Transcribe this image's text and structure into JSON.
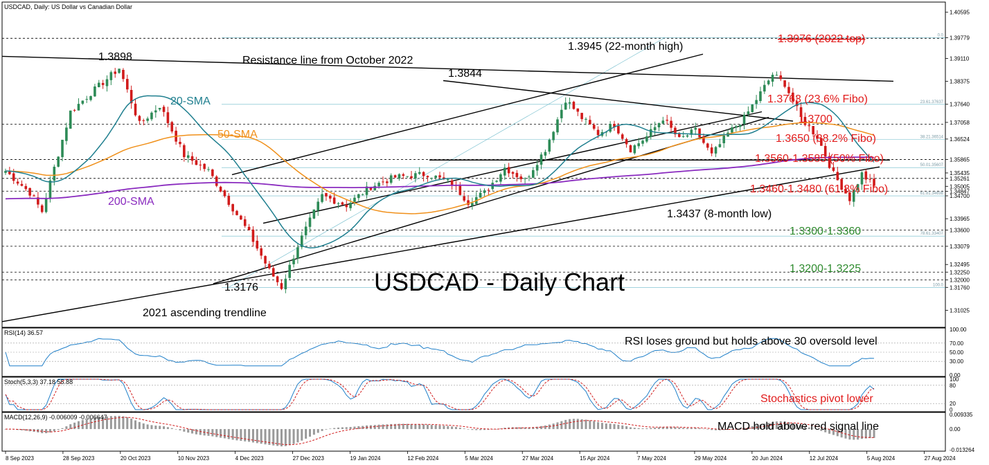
{
  "header": {
    "main_title": "USDCAD, Daily:  US Dollar vs Canadian Dollar",
    "rsi_title": "RSI(14) 36.57",
    "stoch_title": "Stoch(5,3,3) 37.18 55.88",
    "macd_title": "MACD(12,26,9) -0.006009 -0.006647"
  },
  "colors": {
    "bull": "#2e8b57",
    "bear": "#d11b1b",
    "sma20": "#1f7f8f",
    "sma50": "#f0901a",
    "sma200": "#8a2bbf",
    "indicator": "#1e7fc9",
    "signal": "#d11b1b",
    "label_red": "#e11b1b",
    "label_green": "#2e8b2e",
    "label_teal": "#1f7f8f"
  },
  "annotations": {
    "big_title": "USDCAD - Daily Chart",
    "high_1": "1.3898",
    "high_2": "1.3844",
    "high_3": "1.3945 (22-month high)",
    "resistance": "Resistance line from October 2022",
    "low_1": "1.3176",
    "trendline_2021": "2021 ascending trendline",
    "low_2": "1.3437 (8-month low)",
    "sma20": "20-SMA",
    "sma50": "50-SMA",
    "sma200": "200-SMA",
    "lvl_2022_top": "1.3976 (2022 top)",
    "lvl_fibo_236": "1.3763 (23.6% Fibo)",
    "lvl_1_37": "1.3700",
    "lvl_fibo_382": "1.3650 (38.2% Fibo)",
    "lvl_fibo_50": "1.3560-1.3585 (50% Fibo)",
    "lvl_fibo_618": "1.3460-1.3480 (61.8% Fibo)",
    "lvl_support_1": "1.3300-1.3360",
    "lvl_support_2": "1.3200-1.3225",
    "rsi_note": "RSI loses ground but holds above 30 oversold level",
    "stoch_note": "Stochastics pivot lower",
    "macd_note": "MACD hold above red signal line"
  },
  "fibo_labels": [
    "0.0",
    "23.61.37637",
    "38.21.36514",
    "50.01.35607",
    "61.81.34698",
    "78.61.33407",
    "100.0"
  ],
  "price_axis": [
    "1.40595",
    "1.39779",
    "1.39110",
    "1.38375",
    "1.37640",
    "1.37058",
    "1.36524",
    "1.35865",
    "1.35435",
    "1.35261",
    "1.35005",
    "1.34847",
    "1.34700",
    "1.33965",
    "1.33600",
    "1.33079",
    "1.32495",
    "1.32250",
    "1.32000",
    "1.31760",
    "1.31025"
  ],
  "rsi_axis": [
    "100.00",
    "70.00",
    "50.00",
    "30.00",
    "0.00"
  ],
  "stoch_axis": [
    "100",
    "80",
    "20",
    "0"
  ],
  "macd_axis": [
    "0.009335",
    "0.00",
    "-0.013264"
  ],
  "date_axis": [
    "8 Sep 2023",
    "28 Sep 2023",
    "20 Oct 2023",
    "10 Nov 2023",
    "4 Dec 2023",
    "27 Dec 2023",
    "19 Jan 2024",
    "12 Feb 2024",
    "5 Mar 2024",
    "27 Mar 2024",
    "15 Apr 2024",
    "7 May 2024",
    "29 May 2024",
    "20 Jun 2024",
    "12 Jul 2024",
    "5 Aug 2024",
    "27 Aug 2024"
  ],
  "chart_data": [
    {
      "type": "candlestick",
      "title": "USDCAD, Daily:  US Dollar vs Canadian Dollar",
      "ylim": [
        1.305,
        1.409
      ],
      "anchors": [
        [
          0,
          1.355
        ],
        [
          6,
          1.348
        ],
        [
          9,
          1.342
        ],
        [
          12,
          1.356
        ],
        [
          16,
          1.374
        ],
        [
          21,
          1.38
        ],
        [
          28,
          1.388
        ],
        [
          33,
          1.37
        ],
        [
          38,
          1.376
        ],
        [
          44,
          1.36
        ],
        [
          50,
          1.355
        ],
        [
          55,
          1.345
        ],
        [
          60,
          1.335
        ],
        [
          65,
          1.323
        ],
        [
          68,
          1.3176
        ],
        [
          72,
          1.331
        ],
        [
          78,
          1.347
        ],
        [
          84,
          1.344
        ],
        [
          90,
          1.35
        ],
        [
          96,
          1.353
        ],
        [
          104,
          1.354
        ],
        [
          110,
          1.351
        ],
        [
          114,
          1.345
        ],
        [
          118,
          1.348
        ],
        [
          123,
          1.356
        ],
        [
          128,
          1.352
        ],
        [
          133,
          1.362
        ],
        [
          138,
          1.378
        ],
        [
          142,
          1.372
        ],
        [
          146,
          1.367
        ],
        [
          150,
          1.37
        ],
        [
          154,
          1.362
        ],
        [
          158,
          1.366
        ],
        [
          162,
          1.372
        ],
        [
          166,
          1.365
        ],
        [
          170,
          1.368
        ],
        [
          174,
          1.36
        ],
        [
          178,
          1.367
        ],
        [
          182,
          1.372
        ],
        [
          186,
          1.38
        ],
        [
          189,
          1.386
        ],
        [
          192,
          1.383
        ],
        [
          196,
          1.372
        ],
        [
          200,
          1.366
        ],
        [
          204,
          1.354
        ],
        [
          208,
          1.346
        ],
        [
          211,
          1.354
        ],
        [
          214,
          1.35
        ]
      ],
      "sma200_start": 1.346,
      "x_dates_first": "8 Sep 2023",
      "x_dates_last": "27 Aug 2024"
    },
    {
      "type": "line",
      "title": "RSI(14) 36.57",
      "ylim": [
        0,
        100
      ],
      "levels": [
        70,
        50,
        30
      ]
    },
    {
      "type": "line",
      "title": "Stoch(5,3,3) 37.18 55.88",
      "ylim": [
        0,
        100
      ],
      "levels": [
        80,
        20
      ]
    },
    {
      "type": "line",
      "title": "MACD(12,26,9) -0.006009 -0.006647",
      "ylim": [
        -0.013264,
        0.009335
      ]
    }
  ]
}
